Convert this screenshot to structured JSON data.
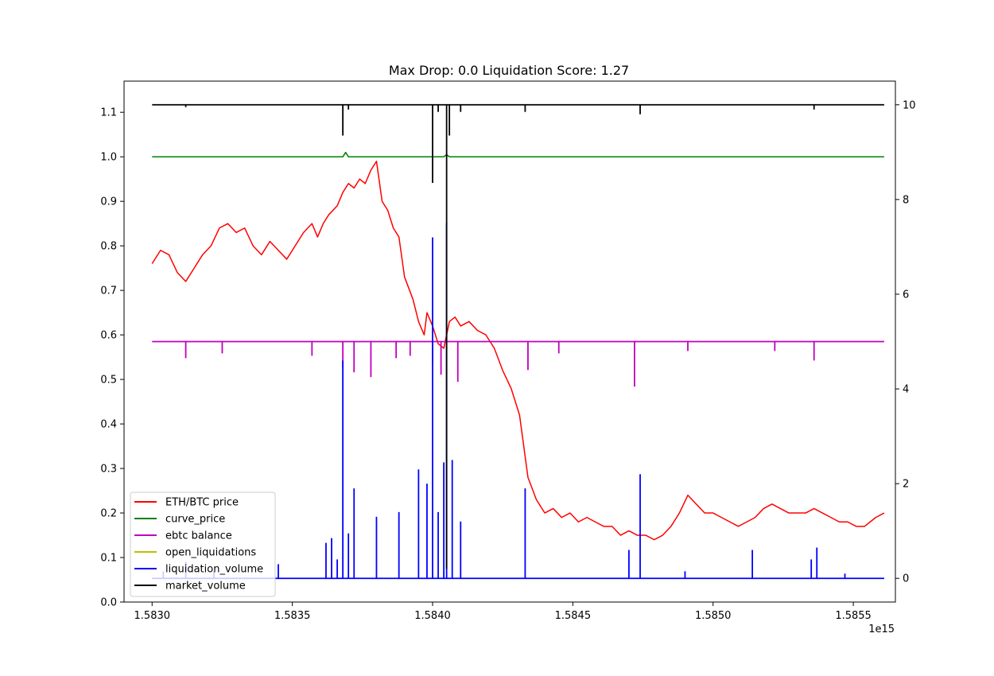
{
  "chart_data": {
    "type": "line",
    "title": "Max Drop: 0.0 Liquidation Score: 1.27",
    "x_offset_label": "1e15",
    "xlim": [
      1.5829,
      1.58565
    ],
    "ylim_left": [
      0.0,
      1.17
    ],
    "ylim_right": [
      -0.5,
      10.5
    ],
    "x_ticks": [
      {
        "value": 1.583,
        "label": "1.5830"
      },
      {
        "value": 1.5835,
        "label": "1.5835"
      },
      {
        "value": 1.584,
        "label": "1.5840"
      },
      {
        "value": 1.5845,
        "label": "1.5845"
      },
      {
        "value": 1.585,
        "label": "1.5850"
      },
      {
        "value": 1.5855,
        "label": "1.5855"
      }
    ],
    "y_ticks_left": [
      {
        "value": 0.0,
        "label": "0.0"
      },
      {
        "value": 0.1,
        "label": "0.1"
      },
      {
        "value": 0.2,
        "label": "0.2"
      },
      {
        "value": 0.3,
        "label": "0.3"
      },
      {
        "value": 0.4,
        "label": "0.4"
      },
      {
        "value": 0.5,
        "label": "0.5"
      },
      {
        "value": 0.6,
        "label": "0.6"
      },
      {
        "value": 0.7,
        "label": "0.7"
      },
      {
        "value": 0.8,
        "label": "0.8"
      },
      {
        "value": 0.9,
        "label": "0.9"
      },
      {
        "value": 1.0,
        "label": "1.0"
      },
      {
        "value": 1.1,
        "label": "1.1"
      }
    ],
    "y_ticks_right": [
      {
        "value": 0,
        "label": "0"
      },
      {
        "value": 2,
        "label": "2"
      },
      {
        "value": 4,
        "label": "4"
      },
      {
        "value": 6,
        "label": "6"
      },
      {
        "value": 8,
        "label": "8"
      },
      {
        "value": 10,
        "label": "10"
      }
    ],
    "legend": {
      "placement": "lower-left",
      "entries": [
        {
          "name": "ETH/BTC price",
          "color": "#ff0000"
        },
        {
          "name": "curve_price",
          "color": "#008000"
        },
        {
          "name": "ebtc balance",
          "color": "#bf00bf"
        },
        {
          "name": "open_liquidations",
          "color": "#bfbf00"
        },
        {
          "name": "liquidation_volume",
          "color": "#0000ff"
        },
        {
          "name": "market_volume",
          "color": "#000000"
        }
      ]
    },
    "series": [
      {
        "name": "ETH/BTC price",
        "axis": "left",
        "color": "#ff0000",
        "x": [
          1.583,
          1.58303,
          1.58306,
          1.58309,
          1.58312,
          1.58315,
          1.58318,
          1.58321,
          1.58324,
          1.58327,
          1.5833,
          1.58333,
          1.58336,
          1.58339,
          1.58342,
          1.58345,
          1.58348,
          1.58351,
          1.58354,
          1.58357,
          1.58359,
          1.58361,
          1.58363,
          1.58366,
          1.58368,
          1.5837,
          1.58372,
          1.58374,
          1.58376,
          1.58378,
          1.5838,
          1.58382,
          1.58384,
          1.58386,
          1.58388,
          1.5839,
          1.58393,
          1.58395,
          1.58397,
          1.58398,
          1.584,
          1.58402,
          1.58404,
          1.58406,
          1.58408,
          1.5841,
          1.58413,
          1.58416,
          1.58419,
          1.58422,
          1.58425,
          1.58428,
          1.58431,
          1.58434,
          1.58437,
          1.5844,
          1.58443,
          1.58446,
          1.58449,
          1.58452,
          1.58455,
          1.58458,
          1.58461,
          1.58464,
          1.58467,
          1.5847,
          1.58473,
          1.58476,
          1.58479,
          1.58482,
          1.58485,
          1.58488,
          1.58491,
          1.58494,
          1.58497,
          1.585,
          1.58503,
          1.58506,
          1.58509,
          1.58512,
          1.58515,
          1.58518,
          1.58521,
          1.58524,
          1.58527,
          1.5853,
          1.58533,
          1.58536,
          1.58539,
          1.58542,
          1.58545,
          1.58548,
          1.58551,
          1.58554,
          1.58556,
          1.58558,
          1.58561
        ],
        "y": [
          0.76,
          0.79,
          0.78,
          0.74,
          0.72,
          0.75,
          0.78,
          0.8,
          0.84,
          0.85,
          0.83,
          0.84,
          0.8,
          0.78,
          0.81,
          0.79,
          0.77,
          0.8,
          0.83,
          0.85,
          0.82,
          0.85,
          0.87,
          0.89,
          0.92,
          0.94,
          0.93,
          0.95,
          0.94,
          0.97,
          0.99,
          0.9,
          0.88,
          0.84,
          0.82,
          0.73,
          0.68,
          0.63,
          0.6,
          0.65,
          0.62,
          0.58,
          0.57,
          0.63,
          0.64,
          0.62,
          0.63,
          0.61,
          0.6,
          0.57,
          0.52,
          0.48,
          0.42,
          0.28,
          0.23,
          0.2,
          0.21,
          0.19,
          0.2,
          0.18,
          0.19,
          0.18,
          0.17,
          0.17,
          0.15,
          0.16,
          0.15,
          0.15,
          0.14,
          0.15,
          0.17,
          0.2,
          0.24,
          0.22,
          0.2,
          0.2,
          0.19,
          0.18,
          0.17,
          0.18,
          0.19,
          0.21,
          0.22,
          0.21,
          0.2,
          0.2,
          0.2,
          0.21,
          0.2,
          0.19,
          0.18,
          0.18,
          0.17,
          0.17,
          0.18,
          0.19,
          0.2
        ]
      },
      {
        "name": "curve_price",
        "axis": "left",
        "color": "#008000",
        "x": [
          1.583,
          1.58368,
          1.58369,
          1.5837,
          1.58404,
          1.58405,
          1.58406,
          1.58561
        ],
        "y": [
          1.0,
          1.0,
          1.01,
          1.0,
          1.0,
          1.005,
          1.0,
          1.0
        ]
      },
      {
        "name": "ebtc balance",
        "axis": "right",
        "color": "#bf00bf",
        "x": [
          1.583,
          1.58561
        ],
        "y": [
          5.0,
          5.0
        ],
        "dips": [
          {
            "x": 1.58312,
            "y": 4.65
          },
          {
            "x": 1.58325,
            "y": 4.75
          },
          {
            "x": 1.58357,
            "y": 4.7
          },
          {
            "x": 1.58368,
            "y": 4.45
          },
          {
            "x": 1.58372,
            "y": 4.35
          },
          {
            "x": 1.58378,
            "y": 4.25
          },
          {
            "x": 1.58387,
            "y": 4.65
          },
          {
            "x": 1.58392,
            "y": 4.7
          },
          {
            "x": 1.584,
            "y": 4.55
          },
          {
            "x": 1.58403,
            "y": 4.3
          },
          {
            "x": 1.58409,
            "y": 4.15
          },
          {
            "x": 1.58434,
            "y": 4.4
          },
          {
            "x": 1.58445,
            "y": 4.75
          },
          {
            "x": 1.58472,
            "y": 4.05
          },
          {
            "x": 1.58491,
            "y": 4.8
          },
          {
            "x": 1.58522,
            "y": 4.8
          },
          {
            "x": 1.58536,
            "y": 4.6
          }
        ]
      },
      {
        "name": "open_liquidations",
        "axis": "right",
        "color": "#bfbf00",
        "x": [
          1.583,
          1.58561
        ],
        "y": [
          0.0,
          0.0
        ]
      },
      {
        "name": "liquidation_volume",
        "axis": "right",
        "color": "#0000ff",
        "x": [
          1.583,
          1.58561
        ],
        "y": [
          0.0,
          0.0
        ],
        "spikes": [
          {
            "x": 1.58304,
            "y": 0.15
          },
          {
            "x": 1.58312,
            "y": 0.35
          },
          {
            "x": 1.58322,
            "y": 0.15
          },
          {
            "x": 1.58345,
            "y": 0.3
          },
          {
            "x": 1.58362,
            "y": 0.75
          },
          {
            "x": 1.58364,
            "y": 0.85
          },
          {
            "x": 1.58366,
            "y": 0.4
          },
          {
            "x": 1.58368,
            "y": 4.6
          },
          {
            "x": 1.5837,
            "y": 0.95
          },
          {
            "x": 1.58372,
            "y": 1.9
          },
          {
            "x": 1.5838,
            "y": 1.3
          },
          {
            "x": 1.58388,
            "y": 1.4
          },
          {
            "x": 1.58395,
            "y": 2.3
          },
          {
            "x": 1.58398,
            "y": 2.0
          },
          {
            "x": 1.584,
            "y": 7.2
          },
          {
            "x": 1.58402,
            "y": 1.4
          },
          {
            "x": 1.58404,
            "y": 2.45
          },
          {
            "x": 1.58405,
            "y": 7.5
          },
          {
            "x": 1.58407,
            "y": 2.5
          },
          {
            "x": 1.5841,
            "y": 1.2
          },
          {
            "x": 1.58433,
            "y": 1.9
          },
          {
            "x": 1.5847,
            "y": 0.6
          },
          {
            "x": 1.58474,
            "y": 2.2
          },
          {
            "x": 1.5849,
            "y": 0.15
          },
          {
            "x": 1.58514,
            "y": 0.6
          },
          {
            "x": 1.58535,
            "y": 0.4
          },
          {
            "x": 1.58537,
            "y": 0.65
          },
          {
            "x": 1.58547,
            "y": 0.1
          }
        ]
      },
      {
        "name": "market_volume",
        "axis": "right",
        "color": "#000000",
        "x": [
          1.583,
          1.58561
        ],
        "y": [
          10.0,
          10.0
        ],
        "dips": [
          {
            "x": 1.58312,
            "y": 9.95
          },
          {
            "x": 1.58368,
            "y": 9.35
          },
          {
            "x": 1.5837,
            "y": 9.9
          },
          {
            "x": 1.584,
            "y": 8.35
          },
          {
            "x": 1.58402,
            "y": 9.85
          },
          {
            "x": 1.58405,
            "y": 0.2
          },
          {
            "x": 1.58406,
            "y": 9.35
          },
          {
            "x": 1.5841,
            "y": 9.85
          },
          {
            "x": 1.58433,
            "y": 9.85
          },
          {
            "x": 1.58474,
            "y": 9.8
          },
          {
            "x": 1.58536,
            "y": 9.9
          }
        ]
      }
    ]
  }
}
